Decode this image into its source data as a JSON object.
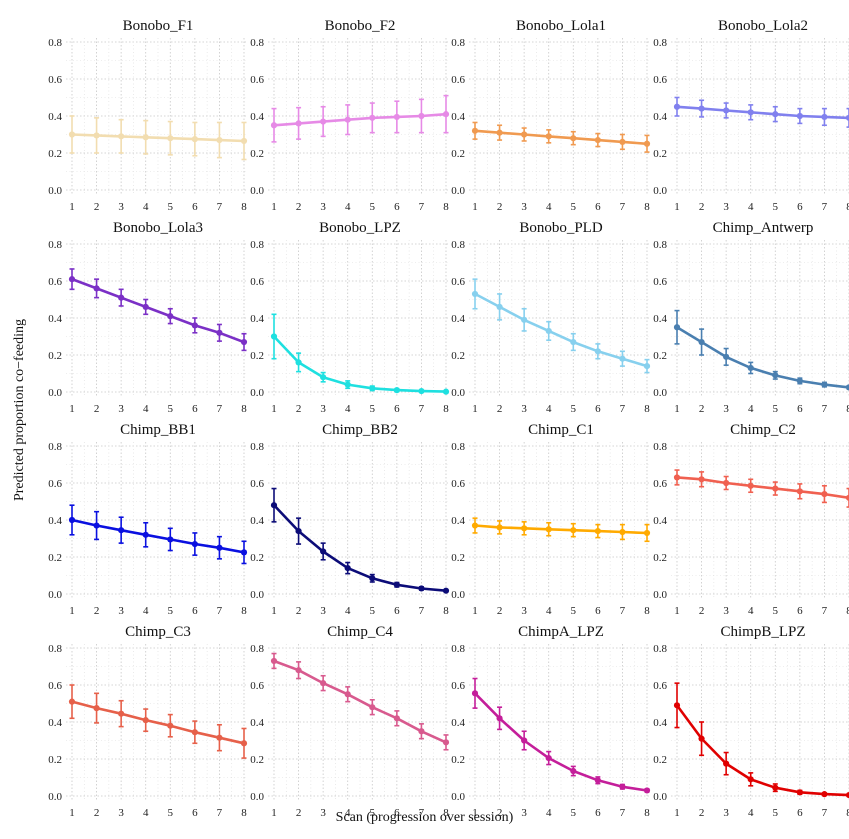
{
  "figure": {
    "xlabel": "Scan (progression over session)",
    "ylabel": "Predicted proportion co−feeding"
  },
  "chart_data": {
    "type": "line",
    "layout": "facet-grid 4x4",
    "xlim": [
      1,
      8
    ],
    "ylim": [
      0,
      0.8
    ],
    "x_ticks": [
      "1",
      "2",
      "3",
      "4",
      "5",
      "6",
      "7",
      "8"
    ],
    "y_ticks": [
      "0.0",
      "0.2",
      "0.4",
      "0.6",
      "0.8"
    ],
    "grid": true,
    "error_bars": true,
    "panels": [
      {
        "title": "Bonobo_F1",
        "color": "#f2ddb0",
        "x": [
          1,
          2,
          3,
          4,
          5,
          6,
          7,
          8
        ],
        "y": [
          0.3,
          0.295,
          0.29,
          0.285,
          0.28,
          0.275,
          0.27,
          0.265
        ],
        "ci": [
          0.1,
          0.095,
          0.09,
          0.09,
          0.09,
          0.09,
          0.095,
          0.1
        ]
      },
      {
        "title": "Bonobo_F2",
        "color": "#e68ae6",
        "x": [
          1,
          2,
          3,
          4,
          5,
          6,
          7,
          8
        ],
        "y": [
          0.35,
          0.36,
          0.37,
          0.38,
          0.39,
          0.395,
          0.4,
          0.41
        ],
        "ci": [
          0.09,
          0.085,
          0.08,
          0.08,
          0.08,
          0.085,
          0.09,
          0.1
        ]
      },
      {
        "title": "Bonobo_Lola1",
        "color": "#f09a50",
        "x": [
          1,
          2,
          3,
          4,
          5,
          6,
          7,
          8
        ],
        "y": [
          0.32,
          0.31,
          0.3,
          0.29,
          0.28,
          0.27,
          0.26,
          0.25
        ],
        "ci": [
          0.045,
          0.04,
          0.035,
          0.035,
          0.035,
          0.035,
          0.04,
          0.045
        ]
      },
      {
        "title": "Bonobo_Lola2",
        "color": "#8080ee",
        "x": [
          1,
          2,
          3,
          4,
          5,
          6,
          7,
          8
        ],
        "y": [
          0.45,
          0.44,
          0.43,
          0.42,
          0.41,
          0.4,
          0.395,
          0.39
        ],
        "ci": [
          0.05,
          0.045,
          0.04,
          0.04,
          0.04,
          0.04,
          0.045,
          0.05
        ]
      },
      {
        "title": "Bonobo_Lola3",
        "color": "#7b30c6",
        "x": [
          1,
          2,
          3,
          4,
          5,
          6,
          7,
          8
        ],
        "y": [
          0.61,
          0.56,
          0.51,
          0.46,
          0.41,
          0.36,
          0.32,
          0.27
        ],
        "ci": [
          0.055,
          0.05,
          0.045,
          0.04,
          0.04,
          0.04,
          0.045,
          0.045
        ]
      },
      {
        "title": "Bonobo_LPZ",
        "color": "#1ee0e0",
        "x": [
          1,
          2,
          3,
          4,
          5,
          6,
          7,
          8
        ],
        "y": [
          0.3,
          0.16,
          0.08,
          0.04,
          0.02,
          0.01,
          0.005,
          0.002
        ],
        "ci": [
          0.12,
          0.05,
          0.025,
          0.02,
          0.012,
          0.008,
          0.004,
          0.002
        ]
      },
      {
        "title": "Bonobo_PLD",
        "color": "#87d0ee",
        "x": [
          1,
          2,
          3,
          4,
          5,
          6,
          7,
          8
        ],
        "y": [
          0.53,
          0.46,
          0.39,
          0.33,
          0.27,
          0.22,
          0.18,
          0.14
        ],
        "ci": [
          0.08,
          0.07,
          0.06,
          0.05,
          0.045,
          0.04,
          0.04,
          0.035
        ]
      },
      {
        "title": "Chimp_Antwerp",
        "color": "#4a7fb0",
        "x": [
          1,
          2,
          3,
          4,
          5,
          6,
          7,
          8
        ],
        "y": [
          0.35,
          0.27,
          0.19,
          0.13,
          0.09,
          0.06,
          0.04,
          0.025
        ],
        "ci": [
          0.09,
          0.07,
          0.045,
          0.03,
          0.02,
          0.015,
          0.012,
          0.008
        ]
      },
      {
        "title": "Chimp_BB1",
        "color": "#0a10e0",
        "x": [
          1,
          2,
          3,
          4,
          5,
          6,
          7,
          8
        ],
        "y": [
          0.4,
          0.37,
          0.345,
          0.32,
          0.295,
          0.27,
          0.25,
          0.225
        ],
        "ci": [
          0.08,
          0.075,
          0.07,
          0.065,
          0.06,
          0.06,
          0.06,
          0.06
        ]
      },
      {
        "title": "Chimp_BB2",
        "color": "#0c0c78",
        "x": [
          1,
          2,
          3,
          4,
          5,
          6,
          7,
          8
        ],
        "y": [
          0.48,
          0.34,
          0.23,
          0.14,
          0.085,
          0.05,
          0.03,
          0.018
        ],
        "ci": [
          0.09,
          0.07,
          0.045,
          0.03,
          0.02,
          0.012,
          0.008,
          0.005
        ]
      },
      {
        "title": "Chimp_C1",
        "color": "#ffaa00",
        "x": [
          1,
          2,
          3,
          4,
          5,
          6,
          7,
          8
        ],
        "y": [
          0.37,
          0.36,
          0.355,
          0.35,
          0.345,
          0.34,
          0.335,
          0.33
        ],
        "ci": [
          0.04,
          0.035,
          0.035,
          0.035,
          0.035,
          0.035,
          0.04,
          0.045
        ]
      },
      {
        "title": "Chimp_C2",
        "color": "#f06050",
        "x": [
          1,
          2,
          3,
          4,
          5,
          6,
          7,
          8
        ],
        "y": [
          0.63,
          0.62,
          0.6,
          0.585,
          0.57,
          0.555,
          0.54,
          0.52
        ],
        "ci": [
          0.04,
          0.04,
          0.035,
          0.035,
          0.035,
          0.04,
          0.045,
          0.05
        ]
      },
      {
        "title": "Chimp_C3",
        "color": "#e6604a",
        "x": [
          1,
          2,
          3,
          4,
          5,
          6,
          7,
          8
        ],
        "y": [
          0.51,
          0.475,
          0.445,
          0.41,
          0.38,
          0.345,
          0.315,
          0.285
        ],
        "ci": [
          0.09,
          0.08,
          0.07,
          0.06,
          0.06,
          0.06,
          0.07,
          0.08
        ]
      },
      {
        "title": "Chimp_C4",
        "color": "#d85a8e",
        "x": [
          1,
          2,
          3,
          4,
          5,
          6,
          7,
          8
        ],
        "y": [
          0.73,
          0.68,
          0.61,
          0.55,
          0.48,
          0.42,
          0.35,
          0.29
        ],
        "ci": [
          0.04,
          0.045,
          0.04,
          0.04,
          0.04,
          0.04,
          0.04,
          0.04
        ]
      },
      {
        "title": "ChimpA_LPZ",
        "color": "#c41e9a",
        "x": [
          1,
          2,
          3,
          4,
          5,
          6,
          7,
          8
        ],
        "y": [
          0.555,
          0.42,
          0.3,
          0.205,
          0.135,
          0.085,
          0.05,
          0.03
        ],
        "ci": [
          0.08,
          0.06,
          0.05,
          0.035,
          0.025,
          0.018,
          0.012,
          0.008
        ]
      },
      {
        "title": "ChimpB_LPZ",
        "color": "#e00000",
        "x": [
          1,
          2,
          3,
          4,
          5,
          6,
          7,
          8
        ],
        "y": [
          0.49,
          0.31,
          0.175,
          0.09,
          0.045,
          0.02,
          0.01,
          0.005
        ],
        "ci": [
          0.12,
          0.09,
          0.06,
          0.035,
          0.02,
          0.01,
          0.006,
          0.003
        ]
      }
    ]
  }
}
